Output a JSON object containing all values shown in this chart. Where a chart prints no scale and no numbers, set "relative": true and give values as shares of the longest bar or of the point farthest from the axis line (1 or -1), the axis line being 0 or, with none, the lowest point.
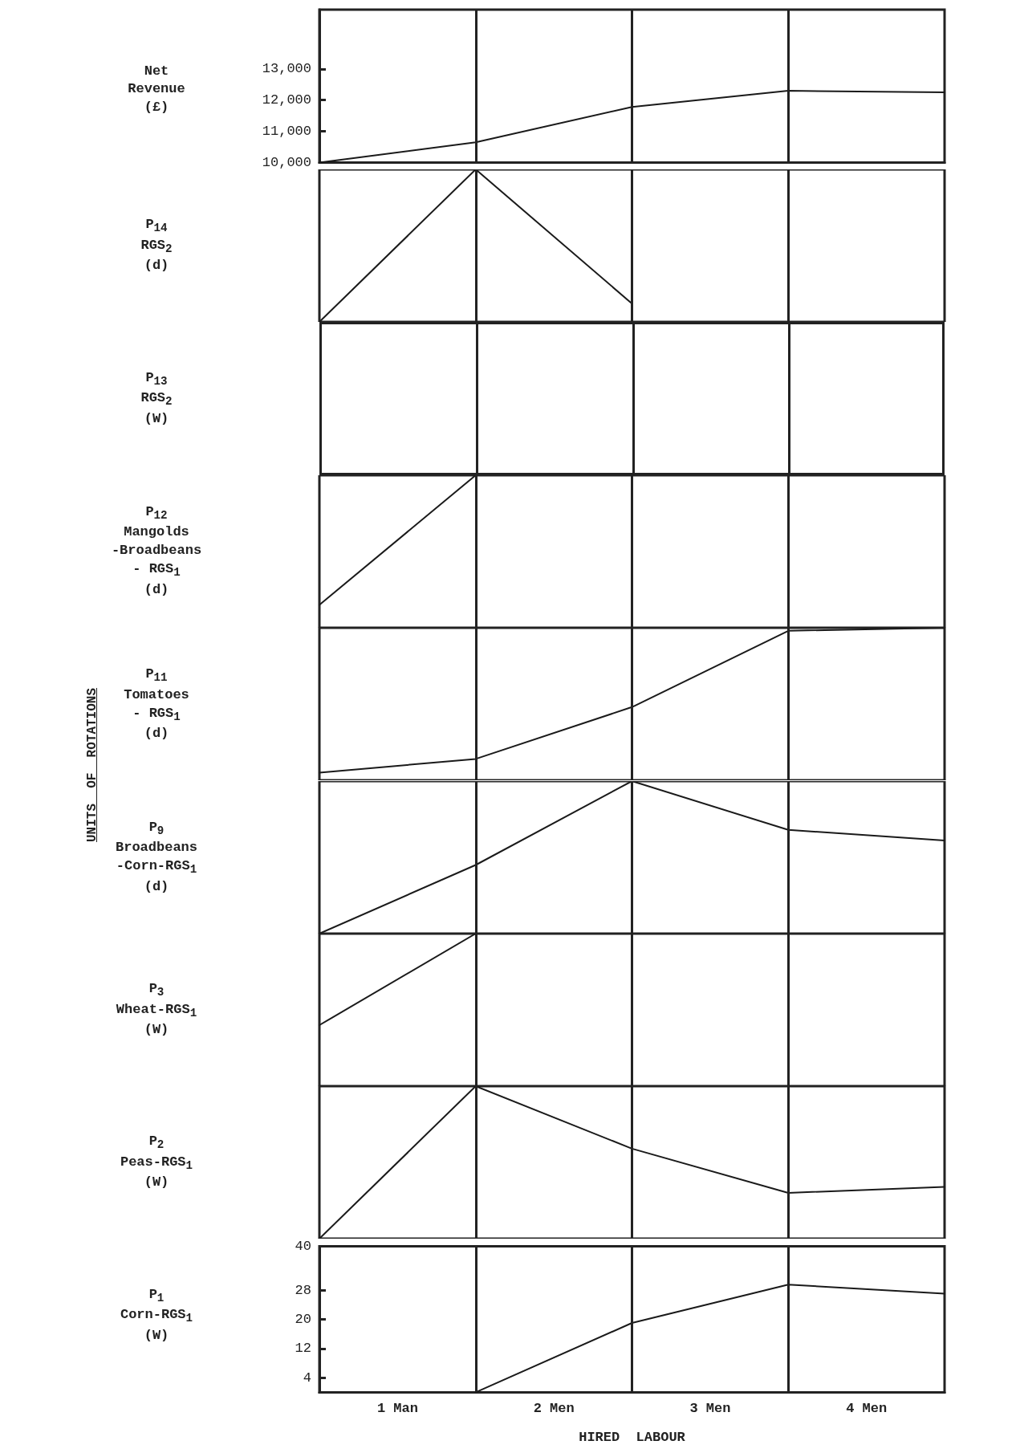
{
  "chart_data": [
    {
      "type": "line",
      "ylabel": "Net\nRevenue\n(£)",
      "x": [
        0,
        1,
        2,
        3,
        4
      ],
      "xlim": [
        0,
        4
      ],
      "ylim": [
        10000,
        14900
      ],
      "yticks": [
        {
          "value": 10000,
          "label": "10,000"
        },
        {
          "value": 11000,
          "label": "11,000"
        },
        {
          "value": 12000,
          "label": "12,000"
        },
        {
          "value": 13000,
          "label": "13,000"
        }
      ],
      "tick_labels": "y",
      "marker": "none",
      "series": [
        {
          "color": "#1a1a1a",
          "values": [
            10000,
            10650,
            11780,
            12300,
            12250
          ]
        }
      ],
      "ref_lines": [
        {
          "axis": "x",
          "value": 1
        },
        {
          "axis": "x",
          "value": 2
        },
        {
          "axis": "x",
          "value": 3
        }
      ]
    },
    {
      "type": "line",
      "ylabel": "P$_{14}$\nRGS$_{2}$\n(d)",
      "relative": true,
      "x": [
        0,
        1,
        2
      ],
      "xlim": [
        0,
        4
      ],
      "tick_labels": false,
      "marker": "none",
      "series": [
        {
          "color": "#1a1a1a",
          "values": [
            0,
            1,
            0.12
          ]
        }
      ],
      "ref_lines": [
        {
          "axis": "x",
          "value": 1
        },
        {
          "axis": "x",
          "value": 2
        },
        {
          "axis": "x",
          "value": 3
        }
      ]
    },
    {
      "type": "other",
      "ylabel": "P$_{13}$\nRGS$_{2}$\n(W)"
    },
    {
      "type": "line",
      "ylabel": "P$_{12}$\nMangolds\n-Broadbeans\n-  RGS$_{1}$\n(d)",
      "relative": true,
      "x": [
        0,
        1
      ],
      "xlim": [
        0,
        4
      ],
      "tick_labels": false,
      "marker": "none",
      "series": [
        {
          "color": "#1a1a1a",
          "values": [
            0.15,
            1
          ]
        }
      ],
      "ref_lines": [
        {
          "axis": "x",
          "value": 1
        },
        {
          "axis": "x",
          "value": 2
        },
        {
          "axis": "x",
          "value": 3
        }
      ]
    },
    {
      "type": "line",
      "ylabel": "P$_{11}$\nTomatoes\n-  RGS$_{1}$\n(d)",
      "annotations": [
        "UNITS  OF  ROTATIONS"
      ],
      "relative": true,
      "x": [
        0,
        1,
        2,
        3,
        4
      ],
      "xlim": [
        0,
        4
      ],
      "tick_labels": false,
      "marker": "none",
      "series": [
        {
          "color": "#1a1a1a",
          "values": [
            0.05,
            0.14,
            0.48,
            0.98,
            1
          ]
        }
      ],
      "ref_lines": [
        {
          "axis": "x",
          "value": 1
        },
        {
          "axis": "x",
          "value": 2
        },
        {
          "axis": "x",
          "value": 3
        }
      ]
    },
    {
      "type": "line",
      "ylabel": "P$_{9}$\nBroadbeans\n-Corn-RGS$_{1}$\n(d)",
      "relative": true,
      "x": [
        0,
        1,
        2,
        3,
        4
      ],
      "xlim": [
        0,
        4
      ],
      "tick_labels": false,
      "marker": "none",
      "series": [
        {
          "color": "#1a1a1a",
          "values": [
            0,
            0.45,
            1,
            0.68,
            0.61
          ]
        }
      ],
      "ref_lines": [
        {
          "axis": "x",
          "value": 1
        },
        {
          "axis": "x",
          "value": 2
        },
        {
          "axis": "x",
          "value": 3
        }
      ]
    },
    {
      "type": "line",
      "ylabel": "P$_{3}$\nWheat-RGS$_{1}$\n(W)",
      "relative": true,
      "x": [
        0,
        1
      ],
      "xlim": [
        0,
        4
      ],
      "tick_labels": false,
      "marker": "none",
      "series": [
        {
          "color": "#1a1a1a",
          "values": [
            0.4,
            1
          ]
        }
      ],
      "ref_lines": [
        {
          "axis": "x",
          "value": 1
        },
        {
          "axis": "x",
          "value": 2
        },
        {
          "axis": "x",
          "value": 3
        }
      ]
    },
    {
      "type": "line",
      "ylabel": "P$_{2}$\nPeas-RGS$_{1}$\n(W)",
      "relative": true,
      "x": [
        0,
        1,
        2,
        3,
        4
      ],
      "xlim": [
        0,
        4
      ],
      "tick_labels": false,
      "marker": "none",
      "series": [
        {
          "color": "#1a1a1a",
          "values": [
            0,
            1,
            0.59,
            0.3,
            0.34
          ]
        }
      ],
      "ref_lines": [
        {
          "axis": "x",
          "value": 1
        },
        {
          "axis": "x",
          "value": 2
        },
        {
          "axis": "x",
          "value": 3
        }
      ]
    },
    {
      "type": "line",
      "ylabel": "P$_{1}$\nCorn-RGS$_{1}$\n(W)",
      "xlabel": "HIRED  LABOUR",
      "x": [
        1,
        2,
        3,
        4
      ],
      "xlim": [
        0,
        4
      ],
      "xticks": [
        {
          "value": 0.5,
          "label": "1 Man"
        },
        {
          "value": 1.5,
          "label": "2 Men"
        },
        {
          "value": 2.5,
          "label": "3 Men"
        },
        {
          "value": 3.5,
          "label": "4 Men"
        }
      ],
      "ylim": [
        0,
        40
      ],
      "yticks": [
        4,
        12,
        20,
        28,
        40
      ],
      "marker": "none",
      "series": [
        {
          "color": "#1a1a1a",
          "values": [
            0,
            19,
            29.5,
            27
          ]
        }
      ],
      "ref_lines": [
        {
          "axis": "x",
          "value": 1
        },
        {
          "axis": "x",
          "value": 2
        },
        {
          "axis": "x",
          "value": 3
        }
      ]
    }
  ]
}
